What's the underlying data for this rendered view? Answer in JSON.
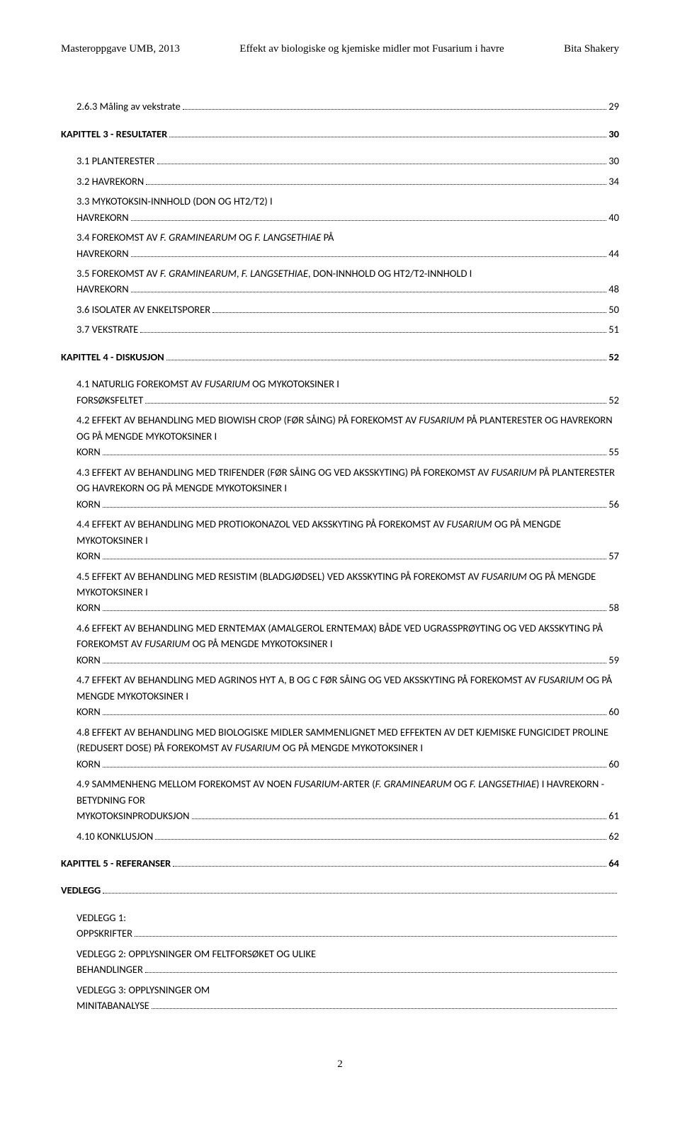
{
  "header": {
    "left": "Masteroppgave UMB, 2013",
    "center": "Effekt av biologiske og kjemiske midler mot Fusarium i havre",
    "right": "Bita Shakery"
  },
  "toc": [
    {
      "label": "2.6.3 Måling av vekstrate",
      "page": "29",
      "bold": false,
      "indent": 1
    },
    {
      "label": "KAPITTEL 3 - RESULTATER",
      "page": "30",
      "bold": true,
      "indent": 0,
      "gapBefore": true
    },
    {
      "label_html": "3.1 P<span class='sc-suffix'>LANTERESTER</span>",
      "page": "30",
      "bold": false,
      "indent": 1,
      "gapBefore": true
    },
    {
      "label_html": "3.2 H<span class='sc-suffix'>AVREKORN</span>",
      "page": "34",
      "bold": false,
      "indent": 1
    },
    {
      "label_html": "3.3 M<span class='sc-suffix'>YKOTOKSIN-INNHOLD</span> (DON <span class='sc-suffix'>OG</span> HT2/T2) <span class='sc-suffix'>I HAVREKORN</span>",
      "page": "40",
      "bold": false,
      "indent": 1
    },
    {
      "label_html": "3.4 F<span class='sc-suffix'>OREKOMST AV</span> <i>F. <span class='sc-suffix'>GRAMINEARUM</span></i> <span class='sc-suffix'>OG</span> <i>F. <span class='sc-suffix'>LANGSETHIAE</span></i> <span class='sc-suffix'>PÅ HAVREKORN</span>",
      "page": "44",
      "bold": false,
      "indent": 1
    },
    {
      "label_html": "3.5 F<span class='sc-suffix'>OREKOMST AV</span> <i>F. <span class='sc-suffix'>GRAMINEARUM</span></i>, <i>F. <span class='sc-suffix'>LANGSETHIAE</span></i>, DON-<span class='sc-suffix'>INNHOLD OG</span> HT2/T2-<span class='sc-suffix'>INNHOLD I HAVREKORN</span>",
      "page": "48",
      "bold": false,
      "indent": 1
    },
    {
      "label_html": "3.6 I<span class='sc-suffix'>SOLATER AV ENKELTSPORER</span>",
      "page": "50",
      "bold": false,
      "indent": 1
    },
    {
      "label_html": "3.7 V<span class='sc-suffix'>EKSTRATE</span>",
      "page": "51",
      "bold": false,
      "indent": 1
    },
    {
      "label": "KAPITTEL 4 - DISKUSJON",
      "page": "52",
      "bold": true,
      "indent": 0,
      "gapBefore": true
    },
    {
      "label_html": "4.1 N<span class='sc-suffix'>ATURLIG FOREKOMST AV</span> <i>F<span class='sc-suffix'>USARIUM</span></i> <span class='sc-suffix'>OG MYKOTOKSINER I FORSØKSFELTET</span>",
      "page": "52",
      "bold": false,
      "indent": 1,
      "gapBefore": true
    },
    {
      "label_html": "4.2 E<span class='sc-suffix'>FFEKT AV BEHANDLING MED</span> B<span class='sc-suffix'>IOWISH</span> C<span class='sc-suffix'>ROP</span> (<span class='sc-suffix'>FØR SÅING</span>) <span class='sc-suffix'>PÅ FOREKOMST AV</span> <i>F<span class='sc-suffix'>USARIUM</span></i> <span class='sc-suffix'>PÅ PLANTERESTER OG HAVREKORN OG PÅ MENGDE MYKOTOKSINER I KORN</span>",
      "page": "55",
      "bold": false,
      "indent": 1
    },
    {
      "label_html": "4.3 E<span class='sc-suffix'>FFEKT AV BEHANDLING MED</span> T<span class='sc-suffix'>RIFENDER</span> (<span class='sc-suffix'>FØR SÅING OG VED AKSSKYTING</span>) <span class='sc-suffix'>PÅ FOREKOMST AV</span> <i>F<span class='sc-suffix'>USARIUM</span></i> <span class='sc-suffix'>PÅ PLANTERESTER OG HAVREKORN OG PÅ MENGDE MYKOTOKSINER I KORN</span>",
      "page": "56",
      "bold": false,
      "indent": 1
    },
    {
      "label_html": "4.4 E<span class='sc-suffix'>FFEKT AV BEHANDLING MED PROTIOKONAZOL VED AKSSKYTING PÅ FOREKOMST AV</span> <i>F<span class='sc-suffix'>USARIUM</span></i> <span class='sc-suffix'>OG PÅ MENGDE MYKOTOKSINER I KORN</span>",
      "page": "57",
      "bold": false,
      "indent": 1
    },
    {
      "label_html": "4.5 E<span class='sc-suffix'>FFEKT AV BEHANDLING MED</span> R<span class='sc-suffix'>ESISTIM</span> (<span class='sc-suffix'>BLADGJØDSEL</span>) <span class='sc-suffix'>VED AKSSKYTING PÅ FOREKOMST AV</span> <i>F<span class='sc-suffix'>USARIUM</span></i> <span class='sc-suffix'>OG PÅ MENGDE MYKOTOKSINER I KORN</span>",
      "page": "58",
      "bold": false,
      "indent": 1
    },
    {
      "label_html": "4.6 E<span class='sc-suffix'>FFEKT AV BEHANDLING MED</span> E<span class='sc-suffix'>RNTEMAX</span> (A<span class='sc-suffix'>MALGEROL</span> E<span class='sc-suffix'>RNTEMAX</span>) <span class='sc-suffix'>BÅDE VED UGRASSPRØYTING OG VED AKSSKYTING PÅ FOREKOMST AV</span> <i>F<span class='sc-suffix'>USARIUM</span></i> <span class='sc-suffix'>OG PÅ MENGDE MYKOTOKSINER I KORN</span>",
      "page": "59",
      "bold": false,
      "indent": 1
    },
    {
      "label_html": "4.7 E<span class='sc-suffix'>FFEKT AV BEHANDLING MED</span> A<span class='sc-suffix'>GRINOS</span> HYT A, B <span class='sc-suffix'>OG</span> C <span class='sc-suffix'>FØR SÅING OG VED AKSSKYTING PÅ FOREKOMST AV</span> <i>F<span class='sc-suffix'>USARIUM</span></i> <span class='sc-suffix'>OG PÅ MENGDE MYKOTOKSINER I KORN</span>",
      "page": "60",
      "bold": false,
      "indent": 1
    },
    {
      "label_html": "4.8 E<span class='sc-suffix'>FFEKT AV BEHANDLING MED BIOLOGISKE MIDLER SAMMENLIGNET MED EFFEKTEN AV DET KJEMISKE FUNGICIDET</span> P<span class='sc-suffix'>ROLINE</span> (<span class='sc-suffix'>REDUSERT DOSE</span>)  <span class='sc-suffix'>PÅ FOREKOMST AV</span> <i>F<span class='sc-suffix'>USARIUM</span></i> <span class='sc-suffix'>OG PÅ MENGDE MYKOTOKSINER I KORN</span>",
      "page": "60",
      "bold": false,
      "indent": 1
    },
    {
      "label_html": "4.9 S<span class='sc-suffix'>AMMENHENG MELLOM FOREKOMST AV NOEN</span> <i>F<span class='sc-suffix'>USARIUM</span></i>-<span class='sc-suffix'>ARTER</span> (<i>F. <span class='sc-suffix'>GRAMINEARUM</span></i> <span class='sc-suffix'>OG</span> <i>F. <span class='sc-suffix'>LANGSETHIAE</span></i>) <span class='sc-suffix'>I HAVREKORN - BETYDNING FOR MYKOTOKSINPRODUKSJON</span>",
      "page": "61",
      "bold": false,
      "indent": 1
    },
    {
      "label_html": "4.10 K<span class='sc-suffix'>ONKLUSJON</span>",
      "page": "62",
      "bold": false,
      "indent": 1
    },
    {
      "label": "KAPITTEL 5 - REFERANSER",
      "page": "64",
      "bold": true,
      "indent": 0,
      "gapBefore": true
    },
    {
      "label": "VEDLEGG",
      "page": "",
      "bold": true,
      "indent": 0,
      "gapBefore": true
    },
    {
      "label_html": "V<span class='sc-suffix'>EDLEGG</span> 1: O<span class='sc-suffix'>PPSKRIFTER</span>",
      "page": "",
      "bold": false,
      "indent": 1,
      "gapBefore": true
    },
    {
      "label_html": "V<span class='sc-suffix'>EDLEGG</span> 2: O<span class='sc-suffix'>PPLYSNINGER OM FELTFORSØKET OG ULIKE BEHANDLINGER</span>",
      "page": "",
      "bold": false,
      "indent": 1
    },
    {
      "label_html": "V<span class='sc-suffix'>EDLEGG</span> 3: O<span class='sc-suffix'>PPLYSNINGER OM MINITABANALYSE</span>",
      "page": "",
      "bold": false,
      "indent": 1
    }
  ],
  "pageNumber": "2"
}
